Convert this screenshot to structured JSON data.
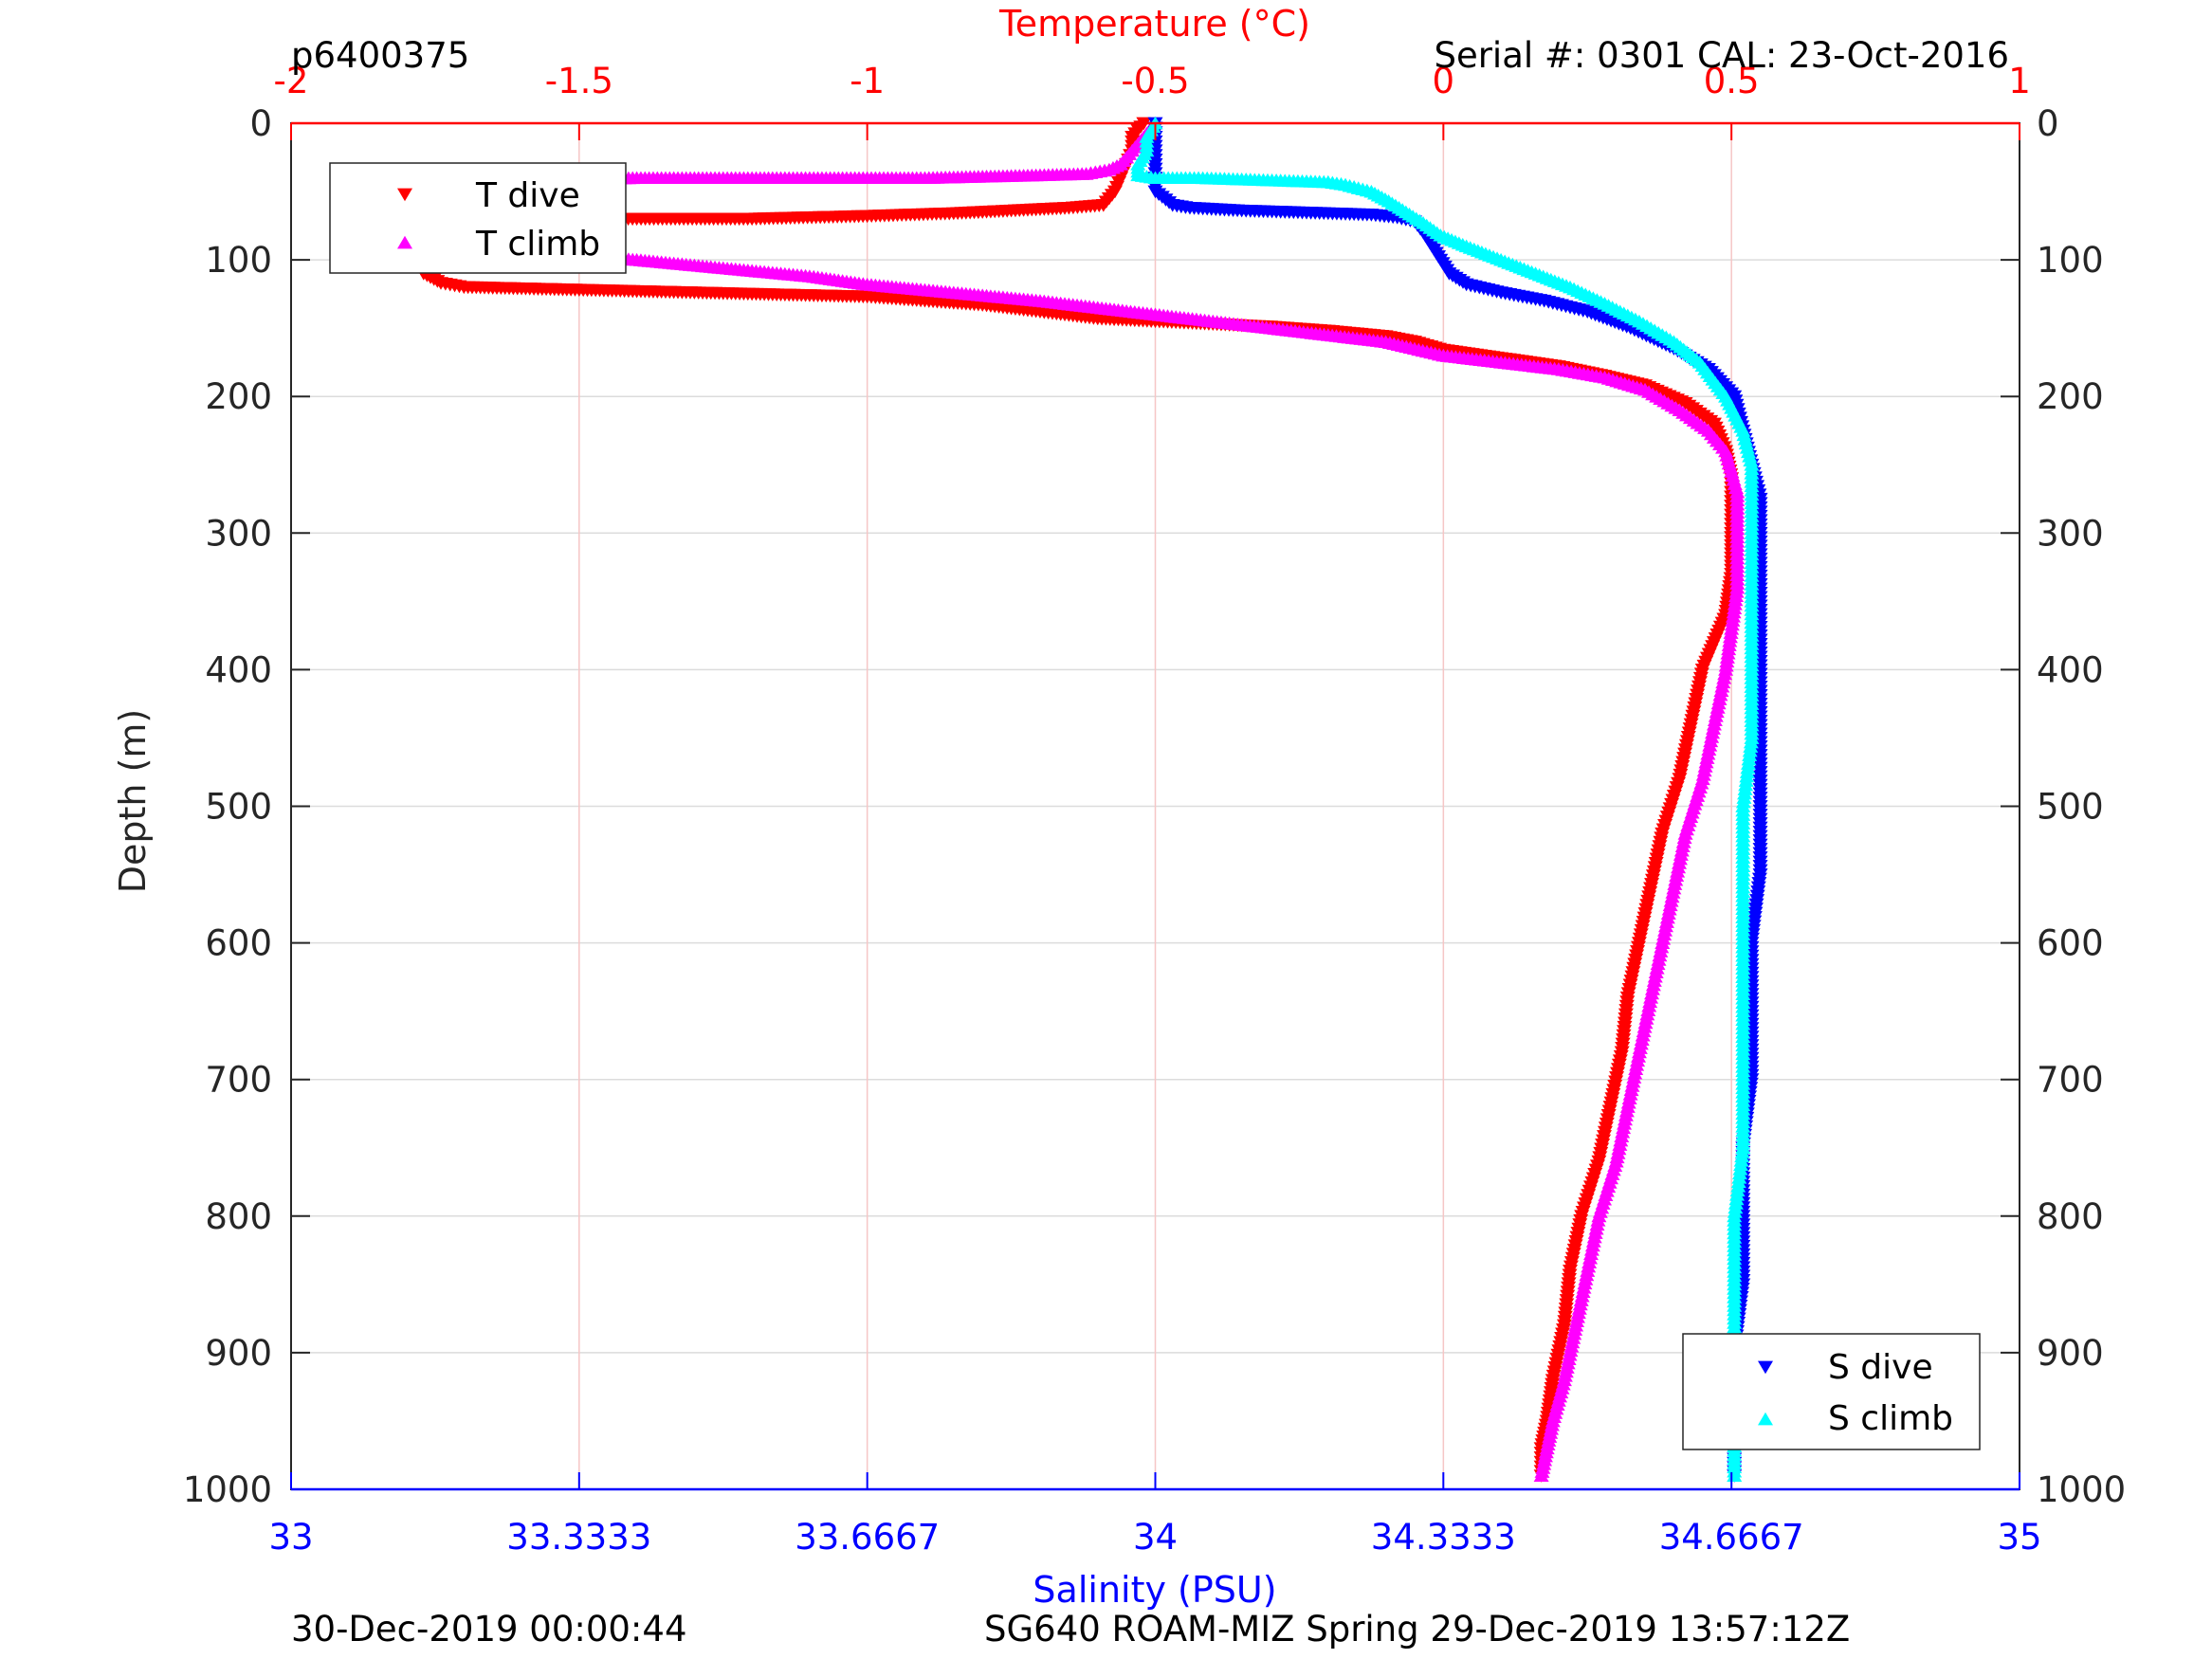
{
  "header": {
    "profile_id": "p6400375",
    "serial": "Serial #: 0301  CAL: 23-Oct-2016"
  },
  "footer": {
    "left": "30-Dec-2019 00:00:44",
    "right": "SG640 ROAM-MIZ Spring 29-Dec-2019 13:57:12Z"
  },
  "colors": {
    "t_dive": "#ff0000",
    "t_climb": "#ff00ff",
    "s_dive": "#0000ff",
    "s_climb": "#00ffff",
    "temperature_axis": "#ff0000",
    "salinity_axis": "#0000ff",
    "axis": "#262626"
  },
  "chart_data": {
    "type": "scatter",
    "ylabel": "Depth (m)",
    "ylim": [
      0,
      1000
    ],
    "y_reversed": true,
    "yticks": [
      "0",
      "100",
      "200",
      "300",
      "400",
      "500",
      "600",
      "700",
      "800",
      "900",
      "1000"
    ],
    "x_top": {
      "label": "Temperature (°C)",
      "lim": [
        -2,
        1
      ],
      "ticks": [
        -2,
        -1.5,
        -1,
        -0.5,
        0,
        0.5,
        1
      ],
      "tick_labels": [
        "-2",
        "-1.5",
        "-1",
        "-0.5",
        "0",
        "0.5",
        "1"
      ]
    },
    "x_bottom": {
      "label": "Salinity (PSU)",
      "lim": [
        33,
        35
      ],
      "ticks": [
        33,
        33.3333,
        33.6667,
        34,
        34.3333,
        34.6667,
        35
      ],
      "tick_labels": [
        "33",
        "33.3333",
        "33.6667",
        "34",
        "34.3333",
        "34.6667",
        "35"
      ]
    },
    "grid": true,
    "legends": [
      {
        "placement": "top-left",
        "entries": [
          "T dive",
          "T climb"
        ]
      },
      {
        "placement": "bottom-right",
        "entries": [
          "S dive",
          "S climb"
        ]
      }
    ],
    "series": [
      {
        "name": "T dive",
        "axis": "temperature",
        "marker": "triangle-down",
        "points": [
          [
            -0.52,
            0
          ],
          [
            -0.53,
            5
          ],
          [
            -0.54,
            10
          ],
          [
            -0.54,
            20
          ],
          [
            -0.55,
            30
          ],
          [
            -0.56,
            40
          ],
          [
            -0.57,
            50
          ],
          [
            -0.59,
            60
          ],
          [
            -0.65,
            62
          ],
          [
            -0.75,
            64
          ],
          [
            -0.85,
            66
          ],
          [
            -1.0,
            68
          ],
          [
            -1.2,
            70
          ],
          [
            -1.4,
            70
          ],
          [
            -1.6,
            70
          ],
          [
            -1.72,
            70
          ],
          [
            -1.78,
            72
          ],
          [
            -1.8,
            76
          ],
          [
            -1.8,
            82
          ],
          [
            -1.8,
            88
          ],
          [
            -1.79,
            95
          ],
          [
            -1.78,
            102
          ],
          [
            -1.77,
            110
          ],
          [
            -1.74,
            117
          ],
          [
            -1.7,
            120
          ],
          [
            -1.6,
            121
          ],
          [
            -1.5,
            122
          ],
          [
            -1.4,
            123
          ],
          [
            -1.3,
            124
          ],
          [
            -1.2,
            125
          ],
          [
            -1.1,
            126
          ],
          [
            -1.0,
            127
          ],
          [
            -0.9,
            130
          ],
          [
            -0.8,
            133
          ],
          [
            -0.7,
            138
          ],
          [
            -0.6,
            143
          ],
          [
            -0.5,
            145
          ],
          [
            -0.4,
            147
          ],
          [
            -0.3,
            149
          ],
          [
            -0.2,
            152
          ],
          [
            -0.1,
            156
          ],
          [
            -0.05,
            160
          ],
          [
            0.0,
            166
          ],
          [
            0.1,
            172
          ],
          [
            0.2,
            178
          ],
          [
            0.28,
            185
          ],
          [
            0.35,
            192
          ],
          [
            0.42,
            205
          ],
          [
            0.47,
            220
          ],
          [
            0.49,
            240
          ],
          [
            0.5,
            260
          ],
          [
            0.5,
            280
          ],
          [
            0.5,
            300
          ],
          [
            0.5,
            330
          ],
          [
            0.49,
            360
          ],
          [
            0.47,
            380
          ],
          [
            0.45,
            400
          ],
          [
            0.43,
            440
          ],
          [
            0.41,
            480
          ],
          [
            0.38,
            520
          ],
          [
            0.36,
            560
          ],
          [
            0.34,
            600
          ],
          [
            0.32,
            640
          ],
          [
            0.31,
            680
          ],
          [
            0.29,
            720
          ],
          [
            0.27,
            760
          ],
          [
            0.24,
            800
          ],
          [
            0.22,
            840
          ],
          [
            0.21,
            880
          ],
          [
            0.19,
            920
          ],
          [
            0.18,
            950
          ],
          [
            0.17,
            970
          ],
          [
            0.17,
            990
          ]
        ]
      },
      {
        "name": "T climb",
        "axis": "temperature",
        "marker": "triangle-up",
        "points": [
          [
            -0.5,
            0
          ],
          [
            -0.51,
            5
          ],
          [
            -0.52,
            10
          ],
          [
            -0.53,
            15
          ],
          [
            -0.54,
            20
          ],
          [
            -0.55,
            25
          ],
          [
            -0.56,
            30
          ],
          [
            -0.58,
            34
          ],
          [
            -0.62,
            37
          ],
          [
            -0.7,
            38
          ],
          [
            -0.8,
            39
          ],
          [
            -0.9,
            40
          ],
          [
            -1.0,
            40
          ],
          [
            -1.1,
            40
          ],
          [
            -1.2,
            40
          ],
          [
            -1.3,
            40
          ],
          [
            -1.4,
            40
          ],
          [
            -1.5,
            41
          ],
          [
            -1.6,
            42
          ],
          [
            -1.66,
            43
          ],
          [
            -1.7,
            46
          ],
          [
            -1.74,
            52
          ],
          [
            -1.77,
            60
          ],
          [
            -1.79,
            70
          ],
          [
            -1.78,
            78
          ],
          [
            -1.75,
            85
          ],
          [
            -1.7,
            90
          ],
          [
            -1.6,
            94
          ],
          [
            -1.5,
            97
          ],
          [
            -1.4,
            100
          ],
          [
            -1.3,
            104
          ],
          [
            -1.2,
            108
          ],
          [
            -1.1,
            112
          ],
          [
            -1.0,
            118
          ],
          [
            -0.9,
            122
          ],
          [
            -0.8,
            126
          ],
          [
            -0.7,
            130
          ],
          [
            -0.6,
            135
          ],
          [
            -0.5,
            140
          ],
          [
            -0.4,
            145
          ],
          [
            -0.3,
            150
          ],
          [
            -0.2,
            155
          ],
          [
            -0.1,
            160
          ],
          [
            -0.05,
            165
          ],
          [
            0.0,
            170
          ],
          [
            0.1,
            175
          ],
          [
            0.2,
            180
          ],
          [
            0.28,
            186
          ],
          [
            0.35,
            195
          ],
          [
            0.41,
            210
          ],
          [
            0.46,
            225
          ],
          [
            0.49,
            240
          ],
          [
            0.5,
            255
          ],
          [
            0.51,
            270
          ],
          [
            0.51,
            300
          ],
          [
            0.51,
            340
          ],
          [
            0.5,
            370
          ],
          [
            0.49,
            400
          ],
          [
            0.47,
            440
          ],
          [
            0.45,
            480
          ],
          [
            0.42,
            520
          ],
          [
            0.4,
            560
          ],
          [
            0.38,
            600
          ],
          [
            0.36,
            640
          ],
          [
            0.34,
            680
          ],
          [
            0.32,
            720
          ],
          [
            0.3,
            760
          ],
          [
            0.27,
            800
          ],
          [
            0.25,
            840
          ],
          [
            0.23,
            880
          ],
          [
            0.21,
            920
          ],
          [
            0.19,
            950
          ],
          [
            0.18,
            970
          ],
          [
            0.17,
            990
          ]
        ]
      },
      {
        "name": "S dive",
        "axis": "salinity",
        "marker": "triangle-down",
        "points": [
          [
            34.0,
            0
          ],
          [
            34.0,
            10
          ],
          [
            34.0,
            20
          ],
          [
            34.0,
            30
          ],
          [
            34.0,
            40
          ],
          [
            34.0,
            50
          ],
          [
            34.02,
            60
          ],
          [
            34.04,
            62
          ],
          [
            34.1,
            64
          ],
          [
            34.15,
            65
          ],
          [
            34.2,
            66
          ],
          [
            34.25,
            67
          ],
          [
            34.28,
            69
          ],
          [
            34.3,
            72
          ],
          [
            34.31,
            80
          ],
          [
            34.32,
            90
          ],
          [
            34.33,
            100
          ],
          [
            34.34,
            110
          ],
          [
            34.36,
            118
          ],
          [
            34.4,
            124
          ],
          [
            34.45,
            130
          ],
          [
            34.5,
            138
          ],
          [
            34.55,
            150
          ],
          [
            34.6,
            165
          ],
          [
            34.64,
            180
          ],
          [
            34.67,
            200
          ],
          [
            34.68,
            225
          ],
          [
            34.69,
            250
          ],
          [
            34.7,
            275
          ],
          [
            34.7,
            300
          ],
          [
            34.7,
            350
          ],
          [
            34.7,
            400
          ],
          [
            34.7,
            450
          ],
          [
            34.7,
            500
          ],
          [
            34.7,
            550
          ],
          [
            34.69,
            600
          ],
          [
            34.69,
            650
          ],
          [
            34.69,
            700
          ],
          [
            34.68,
            750
          ],
          [
            34.68,
            800
          ],
          [
            34.68,
            850
          ],
          [
            34.67,
            900
          ],
          [
            34.67,
            950
          ],
          [
            34.67,
            990
          ]
        ]
      },
      {
        "name": "S climb",
        "axis": "salinity",
        "marker": "triangle-up",
        "points": [
          [
            34.0,
            0
          ],
          [
            33.99,
            10
          ],
          [
            33.99,
            20
          ],
          [
            33.98,
            30
          ],
          [
            33.98,
            38
          ],
          [
            34.0,
            40
          ],
          [
            34.05,
            40
          ],
          [
            34.1,
            41
          ],
          [
            34.15,
            42
          ],
          [
            34.2,
            43
          ],
          [
            34.22,
            45
          ],
          [
            34.25,
            50
          ],
          [
            34.27,
            57
          ],
          [
            34.29,
            65
          ],
          [
            34.31,
            73
          ],
          [
            34.33,
            82
          ],
          [
            34.36,
            90
          ],
          [
            34.4,
            100
          ],
          [
            34.44,
            110
          ],
          [
            34.48,
            120
          ],
          [
            34.52,
            132
          ],
          [
            34.56,
            145
          ],
          [
            34.6,
            160
          ],
          [
            34.63,
            175
          ],
          [
            34.66,
            200
          ],
          [
            34.68,
            225
          ],
          [
            34.69,
            250
          ],
          [
            34.69,
            275
          ],
          [
            34.69,
            300
          ],
          [
            34.69,
            350
          ],
          [
            34.69,
            400
          ],
          [
            34.69,
            450
          ],
          [
            34.68,
            500
          ],
          [
            34.68,
            550
          ],
          [
            34.68,
            600
          ],
          [
            34.68,
            650
          ],
          [
            34.68,
            700
          ],
          [
            34.68,
            750
          ],
          [
            34.67,
            800
          ],
          [
            34.67,
            850
          ],
          [
            34.67,
            900
          ],
          [
            34.67,
            950
          ],
          [
            34.67,
            990
          ]
        ]
      }
    ]
  }
}
